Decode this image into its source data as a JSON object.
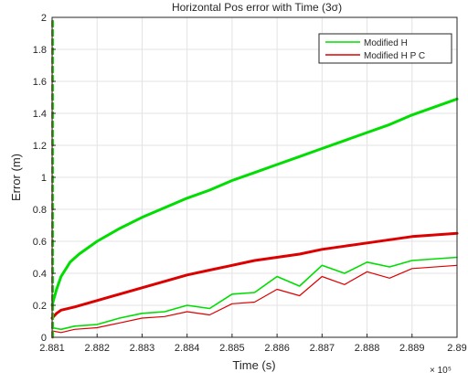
{
  "chart_data": {
    "type": "line",
    "title": "Horizontal Pos error with Time (3σ)",
    "xlabel": "Time (s)",
    "ylabel": "Error (m)",
    "x_exponent_label": "× 10⁵",
    "xlim": [
      2.881,
      2.89
    ],
    "ylim": [
      0,
      2
    ],
    "x_ticks": [
      2.881,
      2.882,
      2.883,
      2.884,
      2.885,
      2.886,
      2.887,
      2.888,
      2.889,
      2.89
    ],
    "x_tick_labels": [
      "2.881",
      "2.882",
      "2.883",
      "2.884",
      "2.885",
      "2.886",
      "2.887",
      "2.888",
      "2.889",
      "2.89"
    ],
    "y_ticks": [
      0,
      0.2,
      0.4,
      0.6,
      0.8,
      1,
      1.2,
      1.4,
      1.6,
      1.8,
      2
    ],
    "y_tick_labels": [
      "0",
      "0.2",
      "0.4",
      "0.6",
      "0.8",
      "1",
      "1.2",
      "1.4",
      "1.6",
      "1.8",
      "2"
    ],
    "grid": true,
    "legend_position": "top-right",
    "series": [
      {
        "name": "Modified H",
        "color": "#00dd00",
        "x": [
          2.881,
          2.8811,
          2.8812,
          2.8814,
          2.8816,
          2.882,
          2.8825,
          2.883,
          2.8835,
          2.884,
          2.8845,
          2.885,
          2.8855,
          2.886,
          2.8865,
          2.887,
          2.8875,
          2.888,
          2.8885,
          2.889,
          2.89
        ],
        "y": [
          0.2,
          0.3,
          0.38,
          0.47,
          0.52,
          0.6,
          0.68,
          0.75,
          0.81,
          0.87,
          0.92,
          0.98,
          1.03,
          1.08,
          1.13,
          1.18,
          1.23,
          1.28,
          1.33,
          1.39,
          1.49
        ]
      },
      {
        "name": "Modified H P C",
        "color": "#dd0000",
        "x": [
          2.881,
          2.8811,
          2.8812,
          2.8815,
          2.882,
          2.8825,
          2.883,
          2.8835,
          2.884,
          2.8845,
          2.885,
          2.8855,
          2.886,
          2.8865,
          2.887,
          2.8875,
          2.888,
          2.8885,
          2.889,
          2.89
        ],
        "y": [
          0.12,
          0.15,
          0.17,
          0.19,
          0.23,
          0.27,
          0.31,
          0.35,
          0.39,
          0.42,
          0.45,
          0.48,
          0.5,
          0.52,
          0.55,
          0.57,
          0.59,
          0.61,
          0.63,
          0.65
        ]
      },
      {
        "color": "#00dd00",
        "x": [
          2.881,
          2.8812,
          2.8815,
          2.882,
          2.8825,
          2.883,
          2.8835,
          2.884,
          2.8845,
          2.885,
          2.8855,
          2.886,
          2.8865,
          2.887,
          2.8875,
          2.888,
          2.8885,
          2.889,
          2.89
        ],
        "y": [
          0.06,
          0.05,
          0.07,
          0.08,
          0.12,
          0.15,
          0.16,
          0.2,
          0.18,
          0.27,
          0.28,
          0.38,
          0.32,
          0.45,
          0.4,
          0.47,
          0.44,
          0.48,
          0.5
        ]
      },
      {
        "color": "#dd0000",
        "x": [
          2.881,
          2.8812,
          2.8815,
          2.882,
          2.8825,
          2.883,
          2.8835,
          2.884,
          2.8845,
          2.885,
          2.8855,
          2.886,
          2.8865,
          2.887,
          2.8875,
          2.888,
          2.8885,
          2.889,
          2.89
        ],
        "y": [
          0.04,
          0.03,
          0.05,
          0.06,
          0.09,
          0.12,
          0.13,
          0.16,
          0.14,
          0.21,
          0.22,
          0.3,
          0.26,
          0.38,
          0.33,
          0.41,
          0.37,
          0.43,
          0.45
        ]
      },
      {
        "color": "#dd0000",
        "style": "dashed",
        "x": [
          2.88101,
          2.88101
        ],
        "y": [
          0,
          2
        ]
      },
      {
        "color": "#00dd00",
        "style": "dashed",
        "x": [
          2.88102,
          2.88102
        ],
        "y": [
          0,
          2
        ]
      }
    ]
  }
}
